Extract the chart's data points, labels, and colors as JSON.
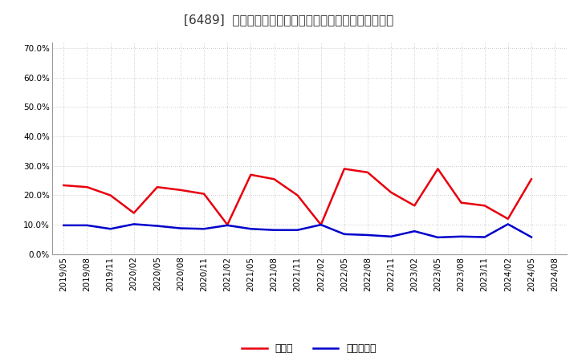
{
  "title": "[6489]  現預金、有利子負債の総資産に対する比率の推移",
  "x_labels": [
    "2019/05",
    "2019/08",
    "2019/11",
    "2020/02",
    "2020/05",
    "2020/08",
    "2020/11",
    "2021/02",
    "2021/05",
    "2021/08",
    "2021/11",
    "2022/02",
    "2022/05",
    "2022/08",
    "2022/11",
    "2023/02",
    "2023/05",
    "2023/08",
    "2023/11",
    "2024/02",
    "2024/05",
    "2024/08"
  ],
  "cash_values": [
    0.234,
    0.228,
    0.2,
    0.14,
    0.228,
    0.218,
    0.205,
    0.1,
    0.27,
    0.255,
    0.2,
    0.1,
    0.29,
    0.278,
    0.21,
    0.165,
    0.29,
    0.175,
    0.165,
    0.12,
    0.255,
    null
  ],
  "debt_values": [
    0.098,
    0.098,
    0.086,
    0.102,
    0.096,
    0.088,
    0.086,
    0.098,
    0.086,
    0.082,
    0.082,
    0.1,
    0.068,
    0.065,
    0.06,
    0.078,
    0.057,
    0.06,
    0.058,
    0.102,
    0.058,
    null
  ],
  "cash_color": "#e8000d",
  "debt_color": "#0000cc",
  "background_color": "#ffffff",
  "grid_color": "#aaaaaa",
  "ylim": [
    0.0,
    0.72
  ],
  "yticks": [
    0.0,
    0.1,
    0.2,
    0.3,
    0.4,
    0.5,
    0.6,
    0.7
  ],
  "legend_cash": "現預金",
  "legend_debt": "有利子負債",
  "title_fontsize": 11,
  "axis_fontsize": 7.5,
  "legend_fontsize": 9
}
